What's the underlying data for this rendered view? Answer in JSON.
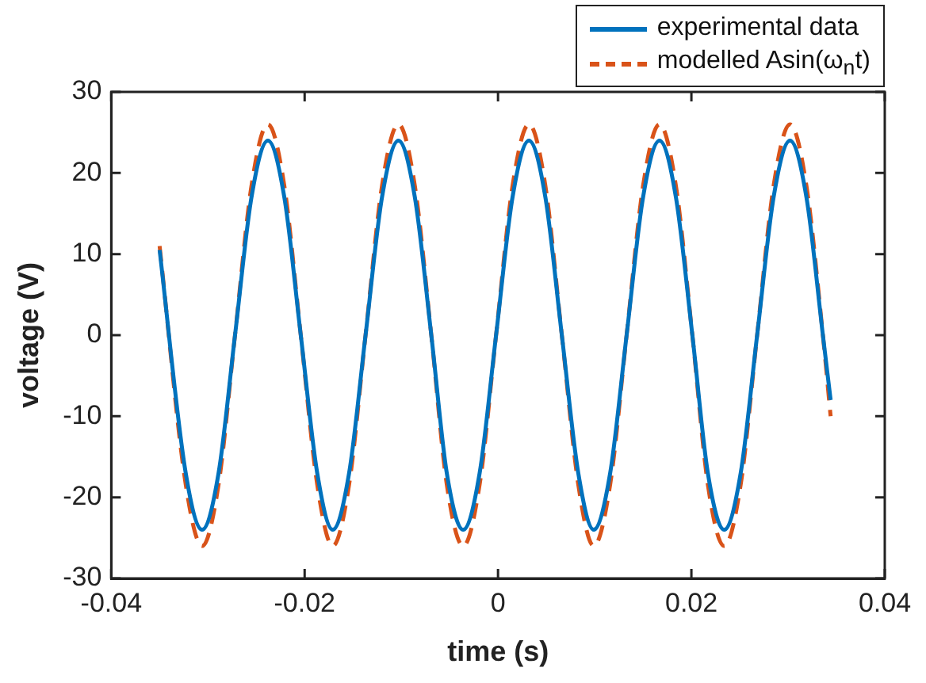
{
  "chart_data": {
    "type": "line",
    "xlabel": "time (s)",
    "ylabel": "voltage (V)",
    "xlim": [
      -0.04,
      0.04
    ],
    "xticks": [
      -0.04,
      -0.02,
      0,
      0.02,
      0.04
    ],
    "ylim": [
      -30,
      30
    ],
    "yticks": [
      -30,
      -20,
      -10,
      0,
      10,
      20,
      30
    ],
    "grid": false,
    "legend": "top right",
    "marker": "none",
    "x": [
      -0.035,
      -0.0323,
      -0.0306,
      -0.0289,
      -0.0272,
      -0.0255,
      -0.0238,
      -0.0221,
      -0.0204,
      -0.0187,
      -0.0171,
      -0.0154,
      -0.0137,
      -0.012,
      -0.0103,
      -0.0086,
      -0.0069,
      -0.0053,
      -0.0036,
      -0.0019,
      -0.0002,
      0.0015,
      0.0032,
      0.0049,
      0.0066,
      0.0083,
      0.0099,
      0.0116,
      0.0133,
      0.015,
      0.0167,
      0.0184,
      0.0201,
      0.0217,
      0.0234,
      0.0251,
      0.0268,
      0.0285,
      0.0302,
      0.0319,
      0.0336,
      0.0344
    ],
    "series": [
      {
        "name": "experimental data",
        "color": "#0072bd",
        "line_style": "solid",
        "values": [
          10.5,
          -17,
          -24,
          -17,
          0,
          17,
          24,
          17,
          0,
          -17,
          -24,
          -17,
          0,
          17,
          24,
          17,
          0,
          -17,
          -24,
          -17,
          0,
          17,
          24,
          17,
          0,
          -17,
          -24,
          -17,
          0,
          17,
          24,
          17,
          0,
          -17,
          -24,
          -17,
          0,
          17,
          24,
          17,
          0,
          -8
        ]
      },
      {
        "name": "modelled Asin(ω$_{n}$t)",
        "color": "#d95319",
        "line_style": "dashed",
        "values": [
          11,
          -18.4,
          -26,
          -18.4,
          0,
          18.4,
          26,
          18.4,
          0,
          -18.4,
          -26,
          -18.4,
          0,
          18.4,
          26,
          18.4,
          0,
          -18.4,
          -26,
          -18.4,
          0,
          18.4,
          26,
          18.4,
          0,
          -18.4,
          -26,
          -18.4,
          0,
          18.4,
          26,
          18.4,
          0,
          -18.4,
          -26,
          -18.4,
          0,
          18.4,
          26,
          18.4,
          0,
          -10
        ]
      }
    ]
  }
}
